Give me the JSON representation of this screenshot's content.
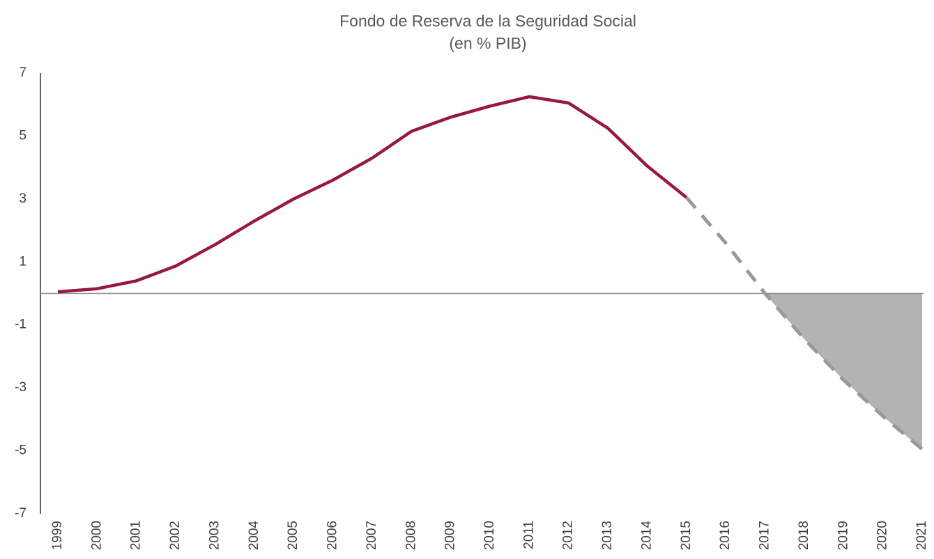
{
  "chart_data": {
    "type": "line",
    "title": "Fondo de Reserva de la Seguridad Social",
    "subtitle": "(en % PIB)",
    "categories": [
      "1999",
      "2000",
      "2001",
      "2002",
      "2003",
      "2004",
      "2005",
      "2006",
      "2007",
      "2008",
      "2009",
      "2010",
      "2011",
      "2012",
      "2013",
      "2014",
      "2015",
      "2016",
      "2017",
      "2018",
      "2019",
      "2020",
      "2021"
    ],
    "series": [
      {
        "color": "#97193b",
        "dashed": false,
        "values": [
          0.05,
          0.15,
          0.4,
          0.87,
          1.55,
          2.3,
          3.0,
          3.6,
          4.3,
          5.15,
          5.6,
          5.95,
          6.25,
          6.05,
          5.25,
          4.05,
          3.05,
          null,
          null,
          null,
          null,
          null,
          null
        ]
      },
      {
        "color": "#999999",
        "dashed": true,
        "fill_negative": "#b3b3b3",
        "values": [
          null,
          null,
          null,
          null,
          null,
          null,
          null,
          null,
          null,
          null,
          null,
          null,
          null,
          null,
          null,
          null,
          3.05,
          1.6,
          0,
          -1.45,
          -2.75,
          -3.9,
          -4.95
        ]
      }
    ],
    "ylim": [
      -7,
      7
    ],
    "yticks": [
      -7,
      -5,
      -3,
      -1,
      1,
      3,
      5,
      7
    ],
    "grid": false,
    "zero_line": true
  }
}
